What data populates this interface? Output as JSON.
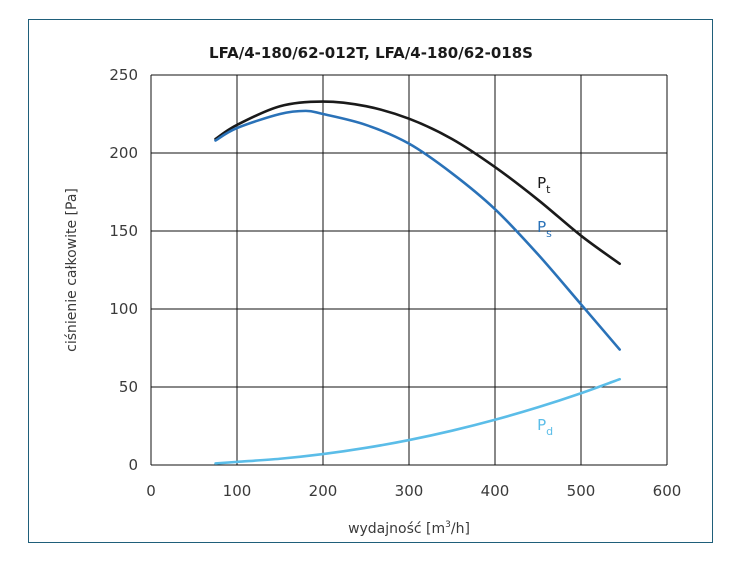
{
  "chart_data": {
    "type": "line",
    "title": "LFA/4-180/62-012T, LFA/4-180/62-018S",
    "xlabel": {
      "prefix": "wydajność [m",
      "sup": "3",
      "suffix": "/h]"
    },
    "ylabel": "ciśnienie całkowite [Pa]",
    "xlim": [
      0,
      600
    ],
    "ylim": [
      0,
      250
    ],
    "xticks": [
      0,
      100,
      200,
      300,
      400,
      500,
      600
    ],
    "yticks": [
      0,
      50,
      100,
      150,
      200,
      250
    ],
    "grid": true,
    "series": [
      {
        "key": "pt",
        "name": "P",
        "sub": "t",
        "color": "#1a1a1a",
        "label_at": [
          435,
          180
        ],
        "x": [
          75,
          100,
          150,
          200,
          250,
          300,
          350,
          400,
          450,
          500,
          545
        ],
        "y": [
          209,
          218,
          230,
          233,
          230,
          222,
          209,
          191,
          170,
          147,
          129
        ]
      },
      {
        "key": "ps",
        "name": "P",
        "sub": "s",
        "color": "#2a72b8",
        "label_at": [
          435,
          152
        ],
        "x": [
          75,
          100,
          150,
          180,
          200,
          250,
          300,
          350,
          400,
          450,
          500,
          545
        ],
        "y": [
          208,
          216,
          225,
          227,
          225,
          218,
          206,
          187,
          164,
          135,
          103,
          74
        ]
      },
      {
        "key": "pd",
        "name": "P",
        "sub": "d",
        "color": "#5bbde8",
        "label_at": [
          435,
          25
        ],
        "x": [
          75,
          100,
          150,
          200,
          250,
          300,
          350,
          400,
          450,
          500,
          545
        ],
        "y": [
          1,
          2,
          4,
          7,
          11,
          16,
          22,
          29,
          37,
          46,
          55
        ]
      }
    ]
  }
}
